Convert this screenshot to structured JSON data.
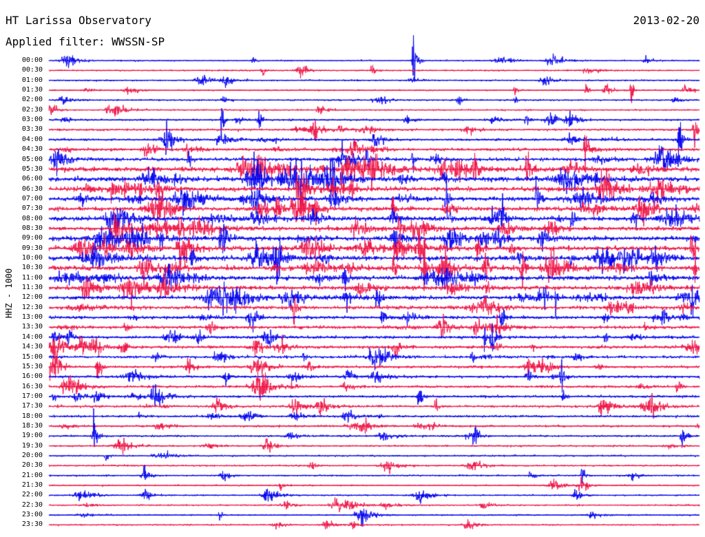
{
  "header": {
    "station": "HT Larissa Observatory",
    "date": "2013-02-20",
    "filter": "Applied filter: WWSSN-SP"
  },
  "channel_label": "HHZ - 1000",
  "chart_data": {
    "type": "line",
    "title": "HT Larissa Observatory",
    "subtitle": "Applied filter: WWSSN-SP",
    "date": "2013-02-20",
    "ylabel": "HHZ - 1000",
    "trace_colors": [
      "#0000ee",
      "#ee1144"
    ],
    "grid": false,
    "time_labels": [
      "00:00",
      "00:30",
      "01:00",
      "01:30",
      "02:00",
      "02:30",
      "03:00",
      "03:30",
      "04:00",
      "04:30",
      "05:00",
      "05:30",
      "06:00",
      "06:30",
      "07:00",
      "07:30",
      "08:00",
      "08:30",
      "09:00",
      "09:30",
      "10:00",
      "10:30",
      "11:00",
      "11:30",
      "12:00",
      "12:30",
      "13:00",
      "13:30",
      "14:00",
      "14:30",
      "15:00",
      "15:30",
      "16:00",
      "16:30",
      "17:00",
      "17:30",
      "18:00",
      "18:30",
      "19:00",
      "19:30",
      "20:00",
      "20:30",
      "21:00",
      "21:30",
      "22:00",
      "22:30",
      "23:00",
      "23:30"
    ],
    "trace_activity": [
      0.08,
      0.07,
      0.07,
      0.08,
      0.09,
      0.09,
      0.15,
      0.17,
      0.2,
      0.28,
      0.35,
      0.5,
      0.55,
      0.5,
      0.45,
      0.45,
      0.45,
      0.45,
      0.5,
      0.5,
      0.5,
      0.48,
      0.45,
      0.42,
      0.4,
      0.35,
      0.3,
      0.3,
      0.28,
      0.28,
      0.25,
      0.22,
      0.22,
      0.2,
      0.2,
      0.2,
      0.18,
      0.16,
      0.14,
      0.12,
      0.11,
      0.1,
      0.09,
      0.08,
      0.08,
      0.08,
      0.07,
      0.07
    ]
  }
}
